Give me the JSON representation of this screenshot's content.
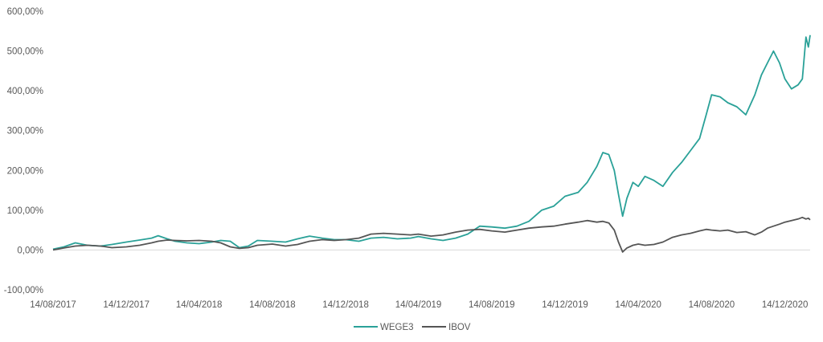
{
  "chart_data": {
    "type": "line",
    "title": "",
    "xlabel": "",
    "ylabel": "",
    "x_range": [
      "2017-08-14",
      "2021-01-25"
    ],
    "ylim": [
      -100,
      600
    ],
    "y_ticks": [
      "-100,00%",
      "0,00%",
      "100,00%",
      "200,00%",
      "300,00%",
      "400,00%",
      "500,00%",
      "600,00%"
    ],
    "x_ticks": [
      "14/08/2017",
      "14/12/2017",
      "14/04/2018",
      "14/08/2018",
      "14/12/2018",
      "14/04/2019",
      "14/08/2019",
      "14/12/2019",
      "14/04/2020",
      "14/08/2020",
      "14/12/2020"
    ],
    "grid": false,
    "legend_position": "bottom",
    "series": [
      {
        "name": "WEGE3",
        "color": "#2aa198",
        "points": [
          [
            "2017-08-14",
            2
          ],
          [
            "2017-09-01",
            8
          ],
          [
            "2017-09-20",
            18
          ],
          [
            "2017-10-10",
            12
          ],
          [
            "2017-11-01",
            10
          ],
          [
            "2017-11-20",
            14
          ],
          [
            "2017-12-14",
            20
          ],
          [
            "2018-01-05",
            25
          ],
          [
            "2018-01-25",
            30
          ],
          [
            "2018-02-05",
            36
          ],
          [
            "2018-02-20",
            28
          ],
          [
            "2018-03-05",
            22
          ],
          [
            "2018-03-25",
            18
          ],
          [
            "2018-04-14",
            16
          ],
          [
            "2018-05-05",
            20
          ],
          [
            "2018-05-20",
            24
          ],
          [
            "2018-06-05",
            22
          ],
          [
            "2018-06-20",
            6
          ],
          [
            "2018-07-05",
            10
          ],
          [
            "2018-07-20",
            24
          ],
          [
            "2018-08-14",
            22
          ],
          [
            "2018-09-05",
            20
          ],
          [
            "2018-09-25",
            28
          ],
          [
            "2018-10-15",
            35
          ],
          [
            "2018-11-05",
            30
          ],
          [
            "2018-11-25",
            26
          ],
          [
            "2018-12-14",
            26
          ],
          [
            "2019-01-05",
            22
          ],
          [
            "2019-01-25",
            30
          ],
          [
            "2019-02-15",
            32
          ],
          [
            "2019-03-10",
            28
          ],
          [
            "2019-04-01",
            30
          ],
          [
            "2019-04-14",
            34
          ],
          [
            "2019-05-05",
            28
          ],
          [
            "2019-05-25",
            24
          ],
          [
            "2019-06-15",
            30
          ],
          [
            "2019-07-05",
            40
          ],
          [
            "2019-07-25",
            60
          ],
          [
            "2019-08-14",
            58
          ],
          [
            "2019-09-05",
            55
          ],
          [
            "2019-09-25",
            60
          ],
          [
            "2019-10-15",
            72
          ],
          [
            "2019-11-05",
            100
          ],
          [
            "2019-11-25",
            110
          ],
          [
            "2019-12-14",
            135
          ],
          [
            "2020-01-05",
            145
          ],
          [
            "2020-01-20",
            170
          ],
          [
            "2020-02-05",
            210
          ],
          [
            "2020-02-15",
            245
          ],
          [
            "2020-02-25",
            240
          ],
          [
            "2020-03-05",
            200
          ],
          [
            "2020-03-12",
            140
          ],
          [
            "2020-03-19",
            85
          ],
          [
            "2020-03-26",
            130
          ],
          [
            "2020-04-05",
            170
          ],
          [
            "2020-04-14",
            160
          ],
          [
            "2020-04-25",
            185
          ],
          [
            "2020-05-10",
            175
          ],
          [
            "2020-05-25",
            160
          ],
          [
            "2020-06-10",
            195
          ],
          [
            "2020-06-25",
            220
          ],
          [
            "2020-07-10",
            250
          ],
          [
            "2020-07-25",
            280
          ],
          [
            "2020-08-05",
            340
          ],
          [
            "2020-08-14",
            390
          ],
          [
            "2020-08-28",
            385
          ],
          [
            "2020-09-10",
            370
          ],
          [
            "2020-09-25",
            360
          ],
          [
            "2020-10-10",
            340
          ],
          [
            "2020-10-25",
            390
          ],
          [
            "2020-11-05",
            440
          ],
          [
            "2020-11-15",
            470
          ],
          [
            "2020-11-25",
            500
          ],
          [
            "2020-12-05",
            470
          ],
          [
            "2020-12-14",
            430
          ],
          [
            "2020-12-25",
            405
          ],
          [
            "2021-01-05",
            415
          ],
          [
            "2021-01-12",
            430
          ],
          [
            "2021-01-18",
            535
          ],
          [
            "2021-01-22",
            510
          ],
          [
            "2021-01-25",
            540
          ]
        ]
      },
      {
        "name": "IBOV",
        "color": "#555555",
        "points": [
          [
            "2017-08-14",
            0
          ],
          [
            "2017-09-01",
            5
          ],
          [
            "2017-09-20",
            10
          ],
          [
            "2017-10-10",
            12
          ],
          [
            "2017-11-01",
            10
          ],
          [
            "2017-11-20",
            6
          ],
          [
            "2017-12-14",
            8
          ],
          [
            "2018-01-05",
            12
          ],
          [
            "2018-01-25",
            18
          ],
          [
            "2018-02-05",
            22
          ],
          [
            "2018-02-20",
            25
          ],
          [
            "2018-03-05",
            24
          ],
          [
            "2018-03-25",
            23
          ],
          [
            "2018-04-14",
            24
          ],
          [
            "2018-05-05",
            22
          ],
          [
            "2018-05-20",
            18
          ],
          [
            "2018-06-05",
            8
          ],
          [
            "2018-06-20",
            4
          ],
          [
            "2018-07-05",
            6
          ],
          [
            "2018-07-20",
            12
          ],
          [
            "2018-08-14",
            15
          ],
          [
            "2018-09-05",
            10
          ],
          [
            "2018-09-25",
            14
          ],
          [
            "2018-10-15",
            22
          ],
          [
            "2018-11-05",
            26
          ],
          [
            "2018-11-25",
            24
          ],
          [
            "2018-12-14",
            26
          ],
          [
            "2019-01-05",
            30
          ],
          [
            "2019-01-25",
            40
          ],
          [
            "2019-02-15",
            42
          ],
          [
            "2019-03-10",
            40
          ],
          [
            "2019-04-01",
            38
          ],
          [
            "2019-04-14",
            40
          ],
          [
            "2019-05-05",
            35
          ],
          [
            "2019-05-25",
            38
          ],
          [
            "2019-06-15",
            45
          ],
          [
            "2019-07-05",
            50
          ],
          [
            "2019-07-25",
            52
          ],
          [
            "2019-08-14",
            48
          ],
          [
            "2019-09-05",
            45
          ],
          [
            "2019-09-25",
            50
          ],
          [
            "2019-10-15",
            55
          ],
          [
            "2019-11-05",
            58
          ],
          [
            "2019-11-25",
            60
          ],
          [
            "2019-12-14",
            65
          ],
          [
            "2020-01-05",
            70
          ],
          [
            "2020-01-20",
            74
          ],
          [
            "2020-02-05",
            70
          ],
          [
            "2020-02-15",
            72
          ],
          [
            "2020-02-25",
            68
          ],
          [
            "2020-03-05",
            50
          ],
          [
            "2020-03-12",
            20
          ],
          [
            "2020-03-19",
            -5
          ],
          [
            "2020-03-26",
            5
          ],
          [
            "2020-04-05",
            12
          ],
          [
            "2020-04-14",
            15
          ],
          [
            "2020-04-25",
            12
          ],
          [
            "2020-05-10",
            14
          ],
          [
            "2020-05-25",
            20
          ],
          [
            "2020-06-10",
            32
          ],
          [
            "2020-06-25",
            38
          ],
          [
            "2020-07-10",
            42
          ],
          [
            "2020-07-25",
            48
          ],
          [
            "2020-08-05",
            52
          ],
          [
            "2020-08-14",
            50
          ],
          [
            "2020-08-28",
            48
          ],
          [
            "2020-09-10",
            50
          ],
          [
            "2020-09-25",
            44
          ],
          [
            "2020-10-10",
            46
          ],
          [
            "2020-10-25",
            38
          ],
          [
            "2020-11-05",
            45
          ],
          [
            "2020-11-15",
            55
          ],
          [
            "2020-11-25",
            60
          ],
          [
            "2020-12-05",
            65
          ],
          [
            "2020-12-14",
            70
          ],
          [
            "2020-12-25",
            74
          ],
          [
            "2021-01-05",
            78
          ],
          [
            "2021-01-12",
            82
          ],
          [
            "2021-01-18",
            78
          ],
          [
            "2021-01-22",
            80
          ],
          [
            "2021-01-25",
            76
          ]
        ]
      }
    ]
  }
}
